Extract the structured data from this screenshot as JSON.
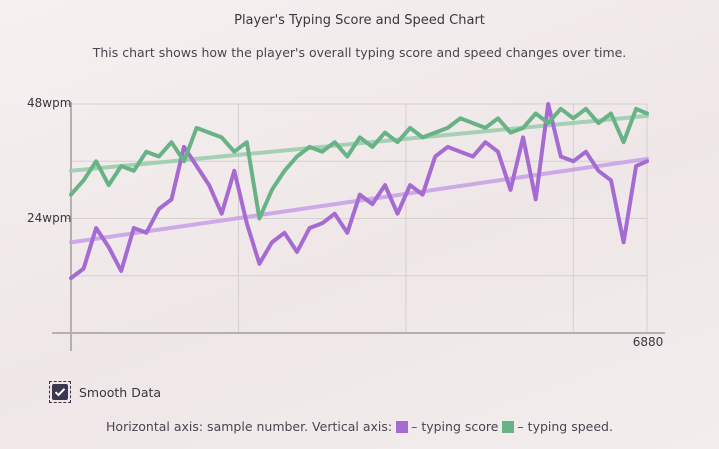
{
  "header": {
    "title": "Player's Typing Score and Speed Chart",
    "subtitle": "This chart shows how the player's overall typing score and speed changes over time."
  },
  "controls": {
    "smooth_label": "Smooth Data",
    "smooth_checked": true
  },
  "legend": {
    "prefix": "Horizontal axis: sample number. Vertical axis:",
    "score_text": "– typing score",
    "speed_text": "– typing speed."
  },
  "colors": {
    "score": "#a66bd3",
    "score_trend": "#c9a2e6",
    "speed": "#68b386",
    "speed_trend": "#9ccdaf",
    "grid": "#d5cfcf",
    "axis": "#b5afaf"
  },
  "chart_data": {
    "type": "line",
    "x_range": [
      0,
      6880
    ],
    "y_range": [
      0,
      48
    ],
    "y_ticks": [
      {
        "value": 24,
        "label": "24wpm"
      },
      {
        "value": 48,
        "label": "48wpm"
      }
    ],
    "x_ticks": [
      {
        "value": 6880,
        "label": "6880"
      }
    ],
    "grid": true,
    "series": [
      {
        "key": "score",
        "color_key": "score",
        "x": [
          0,
          150,
          300,
          450,
          600,
          750,
          900,
          1050,
          1200,
          1350,
          1500,
          1650,
          1800,
          1950,
          2100,
          2250,
          2400,
          2550,
          2700,
          2850,
          3000,
          3150,
          3300,
          3450,
          3600,
          3750,
          3900,
          4050,
          4200,
          4350,
          4500,
          4650,
          4800,
          4950,
          5100,
          5250,
          5400,
          5550,
          5700,
          5850,
          6000,
          6150,
          6300,
          6450,
          6600,
          6750,
          6880
        ],
        "y": [
          11.5,
          13.5,
          22,
          18,
          13,
          22,
          21,
          26,
          28,
          39,
          35,
          31,
          25,
          34,
          23,
          14.5,
          19,
          21,
          17,
          22,
          23,
          25,
          21,
          29,
          27,
          31,
          25,
          31,
          29,
          37,
          39,
          38,
          37,
          40,
          38,
          30,
          41,
          28,
          48,
          37,
          36,
          38,
          34,
          32,
          19,
          35,
          36
        ]
      },
      {
        "key": "speed",
        "color_key": "speed",
        "x": [
          0,
          150,
          300,
          450,
          600,
          750,
          900,
          1050,
          1200,
          1350,
          1500,
          1650,
          1800,
          1950,
          2100,
          2250,
          2400,
          2550,
          2700,
          2850,
          3000,
          3150,
          3300,
          3450,
          3600,
          3750,
          3900,
          4050,
          4200,
          4350,
          4500,
          4650,
          4800,
          4950,
          5100,
          5250,
          5400,
          5550,
          5700,
          5850,
          6000,
          6150,
          6300,
          6450,
          6600,
          6750,
          6880
        ],
        "y": [
          29,
          32,
          36,
          31,
          35,
          34,
          38,
          37,
          40,
          36,
          43,
          42,
          41,
          38,
          40,
          24,
          30,
          34,
          37,
          39,
          38,
          40,
          37,
          41,
          39,
          42,
          40,
          43,
          41,
          42,
          43,
          45,
          44,
          43,
          45,
          42,
          43,
          46,
          44,
          47,
          45,
          47,
          44,
          46,
          40,
          47,
          46
        ]
      },
      {
        "key": "score_trend",
        "color_key": "score_trend",
        "x": [
          0,
          6880
        ],
        "y": [
          19,
          36.5
        ]
      },
      {
        "key": "speed_trend",
        "color_key": "speed_trend",
        "x": [
          0,
          6880
        ],
        "y": [
          34,
          45.5
        ]
      }
    ]
  }
}
